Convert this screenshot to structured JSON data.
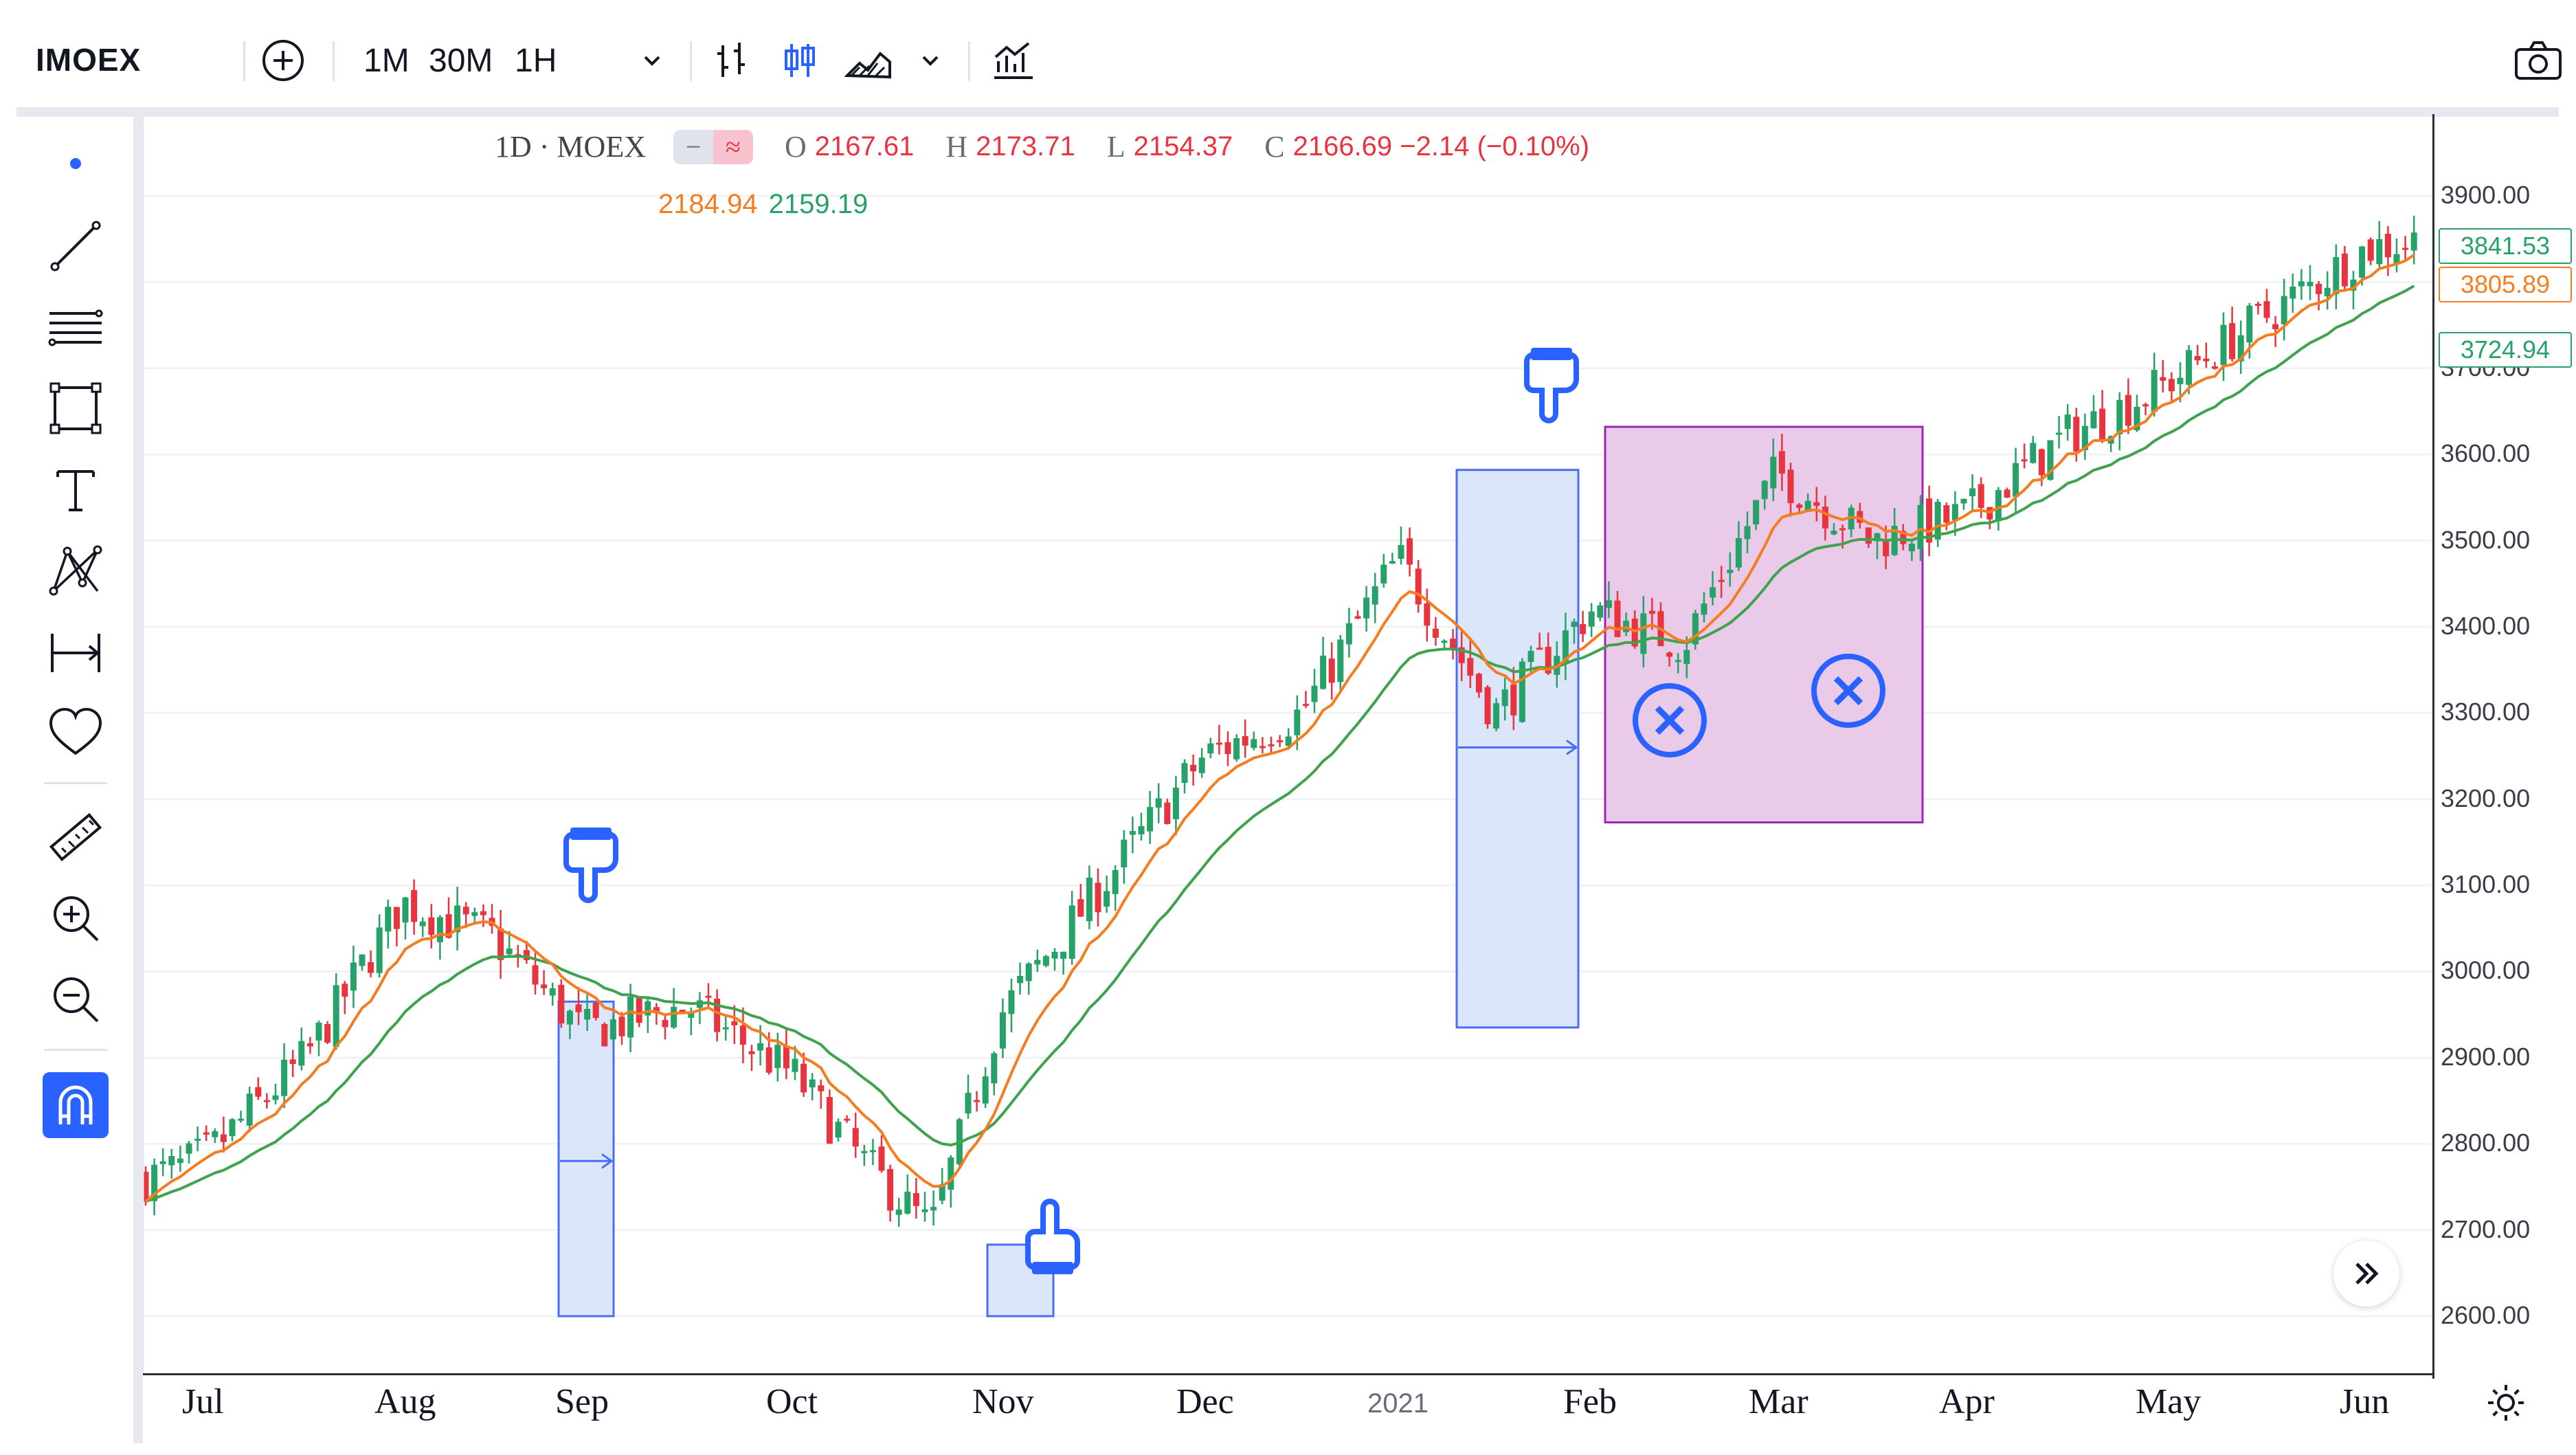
{
  "toolbar": {
    "symbol": "IMOEX",
    "intervals": [
      "1M",
      "30M",
      "1H"
    ],
    "add_icon": "plus-circle-icon",
    "camera_icon": "camera-icon"
  },
  "legend": {
    "title": "1D · MOEX",
    "o_label": "O",
    "o_value": "2167.61",
    "h_label": "H",
    "h_value": "2173.71",
    "l_label": "L",
    "l_value": "2154.37",
    "c_label": "C",
    "c_value": "2166.69 −2.14 (−0.10%)",
    "ma_fast": "2184.94",
    "ma_slow": "2159.19"
  },
  "price_axis": {
    "labels": [
      "3900.00",
      "3800.00",
      "3700.00",
      "3600.00",
      "3500.00",
      "3400.00",
      "3300.00",
      "3200.00",
      "3100.00",
      "3000.00",
      "2900.00",
      "2800.00",
      "2700.00",
      "2600.00"
    ],
    "tags": [
      {
        "text": "3841.53",
        "color": "#26a269"
      },
      {
        "text": "3805.89",
        "color": "#f57c1f"
      },
      {
        "text": "3724.94",
        "color": "#26a269"
      }
    ]
  },
  "time_axis": {
    "labels": [
      "Jul",
      "Aug",
      "Sep",
      "Oct",
      "Nov",
      "Dec",
      "2021",
      "Feb",
      "Mar",
      "Apr",
      "May",
      "Jun"
    ]
  },
  "colors": {
    "up": "#26a269",
    "down": "#e8343f",
    "ma_fast": "#f57c1f",
    "ma_slow": "#3fa34d",
    "range_fill": "#dce6fb",
    "range_stroke": "#4a6cf7",
    "box_fill": "#e9cbe9",
    "box_stroke": "#9c27b0",
    "accent": "#2962ff"
  },
  "chart_data": {
    "type": "candlestick",
    "ylim": [
      2580,
      3940
    ],
    "x": [
      "Jul",
      "Aug",
      "Sep",
      "Oct",
      "Nov",
      "Dec",
      "2021",
      "Feb",
      "Mar",
      "Apr",
      "May",
      "Jun"
    ],
    "close_path": [
      [
        "Jul",
        2770
      ],
      [
        "Jul",
        2790
      ],
      [
        "Aug",
        2900
      ],
      [
        "Aug",
        3080
      ],
      [
        "Sep",
        3040
      ],
      [
        "Sep",
        2930
      ],
      [
        "Oct",
        2960
      ],
      [
        "Oct",
        2880
      ],
      [
        "Nov",
        2780
      ],
      [
        "Nov",
        2700
      ],
      [
        "Nov",
        2950
      ],
      [
        "Dec",
        3100
      ],
      [
        "Dec",
        3250
      ],
      [
        "2021",
        3300
      ],
      [
        "2021",
        3480
      ],
      [
        "Feb",
        3300
      ],
      [
        "Feb",
        3420
      ],
      [
        "Mar",
        3380
      ],
      [
        "Mar",
        3580
      ],
      [
        "Apr",
        3500
      ],
      [
        "Apr",
        3530
      ],
      [
        "May",
        3620
      ],
      [
        "May",
        3680
      ],
      [
        "Jun",
        3840
      ]
    ]
  },
  "annotations": {
    "point_icons": [
      "pointer-down-icon",
      "pointer-down-icon",
      "pointer-up-icon"
    ],
    "cancel_icons": [
      "x-circle-icon",
      "x-circle-icon"
    ]
  }
}
